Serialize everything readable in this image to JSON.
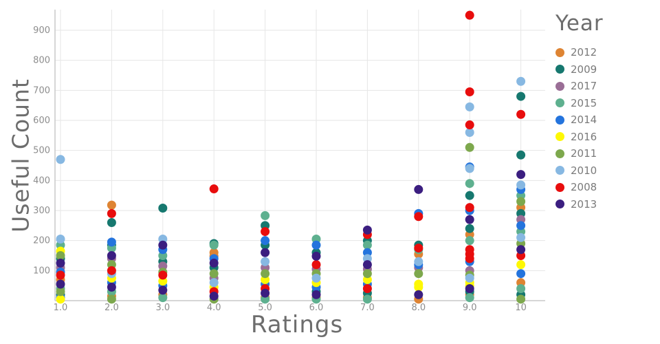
{
  "chart_data": {
    "type": "scatter",
    "title": "",
    "xlabel": "Ratings",
    "ylabel": "Useful Count",
    "legend_title": "Year",
    "legend_position": "right",
    "grid": true,
    "xlim": [
      0.8,
      10.2
    ],
    "ylim": [
      0,
      960
    ],
    "x_tick_values": [
      1,
      2,
      3,
      4,
      5,
      6,
      7,
      8,
      9,
      10
    ],
    "x_tick_labels": [
      "1.0",
      "2.0",
      "3.0",
      "4.0",
      "5.0",
      "6.0",
      "7.0",
      "8.0",
      "9.0",
      "10"
    ],
    "y_ticks": [
      100,
      200,
      300,
      400,
      500,
      600,
      700,
      800,
      900
    ],
    "colors": {
      "grid": "#e6e6e6",
      "axis": "#c9c9c9",
      "tick_label": "#8d8d8d",
      "axis_title": "#6d6d6d"
    },
    "series": [
      {
        "name": "2012",
        "color": "#de8433",
        "points": [
          [
            1,
            70
          ],
          [
            2,
            318
          ],
          [
            2,
            15
          ],
          [
            3,
            20
          ],
          [
            4,
            160
          ],
          [
            4,
            148
          ],
          [
            5,
            10
          ],
          [
            6,
            10
          ],
          [
            7,
            10
          ],
          [
            8,
            155
          ],
          [
            8,
            5
          ],
          [
            9,
            220
          ],
          [
            9,
            20
          ],
          [
            10,
            310
          ],
          [
            10,
            60
          ]
        ]
      },
      {
        "name": "2009",
        "color": "#16786f",
        "points": [
          [
            1,
            140
          ],
          [
            1,
            20
          ],
          [
            2,
            260
          ],
          [
            2,
            185
          ],
          [
            3,
            308
          ],
          [
            3,
            130
          ],
          [
            4,
            190
          ],
          [
            4,
            110
          ],
          [
            5,
            250
          ],
          [
            5,
            185
          ],
          [
            6,
            160
          ],
          [
            6,
            30
          ],
          [
            7,
            200
          ],
          [
            7,
            25
          ],
          [
            8,
            185
          ],
          [
            9,
            350
          ],
          [
            9,
            240
          ],
          [
            9,
            30
          ],
          [
            10,
            680
          ],
          [
            10,
            485
          ],
          [
            10,
            290
          ],
          [
            10,
            20
          ]
        ]
      },
      {
        "name": "2017",
        "color": "#9a6e96",
        "points": [
          [
            1,
            110
          ],
          [
            2,
            140
          ],
          [
            3,
            115
          ],
          [
            4,
            75
          ],
          [
            5,
            110
          ],
          [
            6,
            105
          ],
          [
            7,
            105
          ],
          [
            8,
            110
          ],
          [
            9,
            100
          ],
          [
            10,
            270
          ]
        ]
      },
      {
        "name": "2015",
        "color": "#5eb08f",
        "points": [
          [
            1,
            185
          ],
          [
            1,
            40
          ],
          [
            2,
            175
          ],
          [
            2,
            30
          ],
          [
            3,
            150
          ],
          [
            3,
            10
          ],
          [
            4,
            185
          ],
          [
            5,
            283
          ],
          [
            5,
            5
          ],
          [
            6,
            205
          ],
          [
            6,
            5
          ],
          [
            7,
            185
          ],
          [
            7,
            5
          ],
          [
            8,
            170
          ],
          [
            9,
            390
          ],
          [
            9,
            200
          ],
          [
            9,
            10
          ],
          [
            10,
            350
          ],
          [
            10,
            230
          ],
          [
            10,
            40
          ]
        ]
      },
      {
        "name": "2014",
        "color": "#2474dd",
        "points": [
          [
            1,
            95
          ],
          [
            1,
            10
          ],
          [
            2,
            195
          ],
          [
            2,
            60
          ],
          [
            3,
            170
          ],
          [
            3,
            50
          ],
          [
            4,
            140
          ],
          [
            5,
            200
          ],
          [
            5,
            55
          ],
          [
            6,
            185
          ],
          [
            6,
            45
          ],
          [
            7,
            160
          ],
          [
            7,
            55
          ],
          [
            8,
            290
          ],
          [
            8,
            120
          ],
          [
            9,
            445
          ],
          [
            9,
            300
          ],
          [
            9,
            130
          ],
          [
            10,
            370
          ],
          [
            10,
            250
          ],
          [
            10,
            90
          ]
        ]
      },
      {
        "name": "2016",
        "color": "#fef804",
        "points": [
          [
            1,
            165
          ],
          [
            1,
            5
          ],
          [
            2,
            75
          ],
          [
            3,
            65
          ],
          [
            4,
            45
          ],
          [
            5,
            70
          ],
          [
            6,
            60
          ],
          [
            7,
            70
          ],
          [
            8,
            55
          ],
          [
            8,
            45
          ],
          [
            9,
            60
          ],
          [
            9,
            50
          ],
          [
            10,
            120
          ]
        ]
      },
      {
        "name": "2011",
        "color": "#7da84d",
        "points": [
          [
            1,
            150
          ],
          [
            1,
            30
          ],
          [
            2,
            120
          ],
          [
            2,
            5
          ],
          [
            3,
            95
          ],
          [
            4,
            90
          ],
          [
            4,
            5
          ],
          [
            5,
            90
          ],
          [
            6,
            90
          ],
          [
            7,
            90
          ],
          [
            8,
            90
          ],
          [
            9,
            510
          ],
          [
            9,
            85
          ],
          [
            10,
            330
          ],
          [
            10,
            190
          ],
          [
            10,
            5
          ]
        ]
      },
      {
        "name": "2010",
        "color": "#87b8e2",
        "points": [
          [
            1,
            470
          ],
          [
            1,
            205
          ],
          [
            2,
            90
          ],
          [
            3,
            205
          ],
          [
            4,
            60
          ],
          [
            5,
            130
          ],
          [
            6,
            75
          ],
          [
            7,
            140
          ],
          [
            8,
            130
          ],
          [
            9,
            645
          ],
          [
            9,
            560
          ],
          [
            9,
            440
          ],
          [
            9,
            75
          ],
          [
            10,
            730
          ],
          [
            10,
            385
          ],
          [
            10,
            210
          ]
        ]
      },
      {
        "name": "2008",
        "color": "#e80d0d",
        "points": [
          [
            1,
            85
          ],
          [
            2,
            290
          ],
          [
            2,
            100
          ],
          [
            3,
            85
          ],
          [
            4,
            372
          ],
          [
            4,
            30
          ],
          [
            5,
            230
          ],
          [
            5,
            40
          ],
          [
            6,
            120
          ],
          [
            7,
            220
          ],
          [
            7,
            40
          ],
          [
            8,
            280
          ],
          [
            8,
            175
          ],
          [
            9,
            950
          ],
          [
            9,
            695
          ],
          [
            9,
            585
          ],
          [
            9,
            310
          ],
          [
            9,
            170
          ],
          [
            9,
            155
          ],
          [
            9,
            140
          ],
          [
            10,
            620
          ],
          [
            10,
            150
          ]
        ]
      },
      {
        "name": "2013",
        "color": "#3b1e80",
        "points": [
          [
            1,
            125
          ],
          [
            1,
            55
          ],
          [
            2,
            150
          ],
          [
            2,
            45
          ],
          [
            3,
            185
          ],
          [
            3,
            35
          ],
          [
            4,
            125
          ],
          [
            4,
            15
          ],
          [
            5,
            160
          ],
          [
            5,
            25
          ],
          [
            6,
            148
          ],
          [
            6,
            20
          ],
          [
            7,
            235
          ],
          [
            7,
            120
          ],
          [
            8,
            370
          ],
          [
            8,
            20
          ],
          [
            9,
            270
          ],
          [
            9,
            40
          ],
          [
            10,
            420
          ],
          [
            10,
            170
          ]
        ]
      }
    ]
  }
}
